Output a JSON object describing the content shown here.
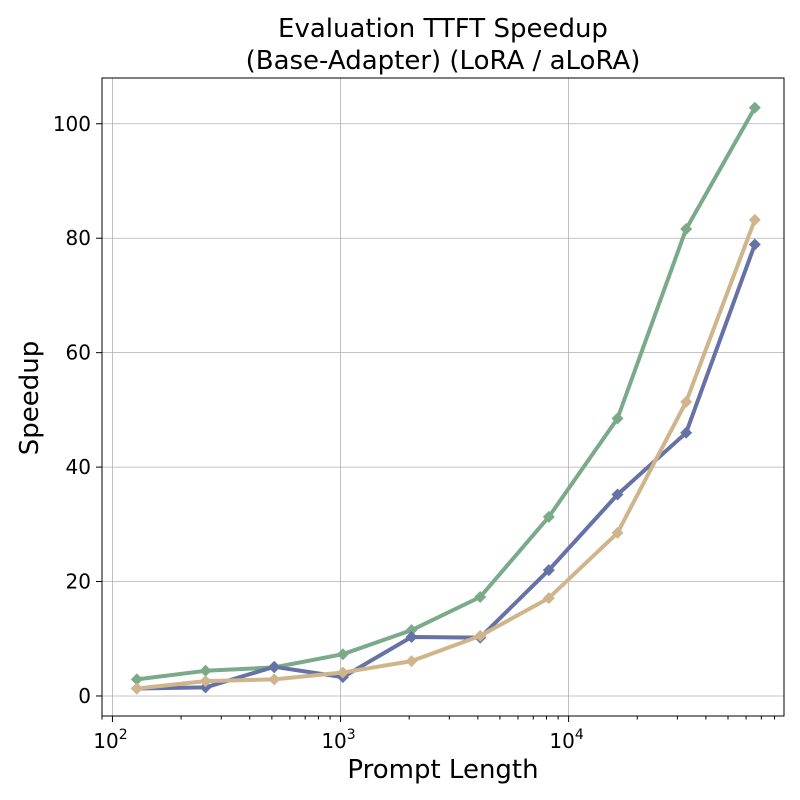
{
  "chart_data": {
    "type": "line",
    "title_lines": [
      "Evaluation TTFT Speedup",
      "(Base-Adapter) (LoRA / aLoRA)"
    ],
    "xlabel": "Prompt Length",
    "ylabel": "Speedup",
    "x_scale": "log",
    "xlim": [
      90,
      88000
    ],
    "ylim": [
      -3.5,
      108
    ],
    "x_ticks": [
      {
        "value": 100,
        "base": "10",
        "exp": "2"
      },
      {
        "value": 1000,
        "base": "10",
        "exp": "3"
      },
      {
        "value": 10000,
        "base": "10",
        "exp": "4"
      }
    ],
    "y_ticks": [
      0,
      20,
      40,
      60,
      80,
      100
    ],
    "grid": true,
    "legend": "none",
    "x": [
      128,
      256,
      512,
      1024,
      2048,
      4096,
      8192,
      16384,
      32768,
      65536
    ],
    "series": [
      {
        "color": "#7aaa8a",
        "marker": "diamond",
        "values": [
          2.9,
          4.4,
          5.0,
          7.3,
          11.5,
          17.3,
          31.3,
          48.5,
          81.6,
          102.8
        ]
      },
      {
        "color": "#6672a6",
        "marker": "diamond",
        "values": [
          1.3,
          1.5,
          5.1,
          3.3,
          10.3,
          10.2,
          22.0,
          35.2,
          46.0,
          78.9
        ]
      },
      {
        "color": "#cfb48c",
        "marker": "diamond",
        "values": [
          1.3,
          2.6,
          2.9,
          4.1,
          6.1,
          10.5,
          17.1,
          28.5,
          51.4,
          83.2
        ]
      }
    ]
  }
}
